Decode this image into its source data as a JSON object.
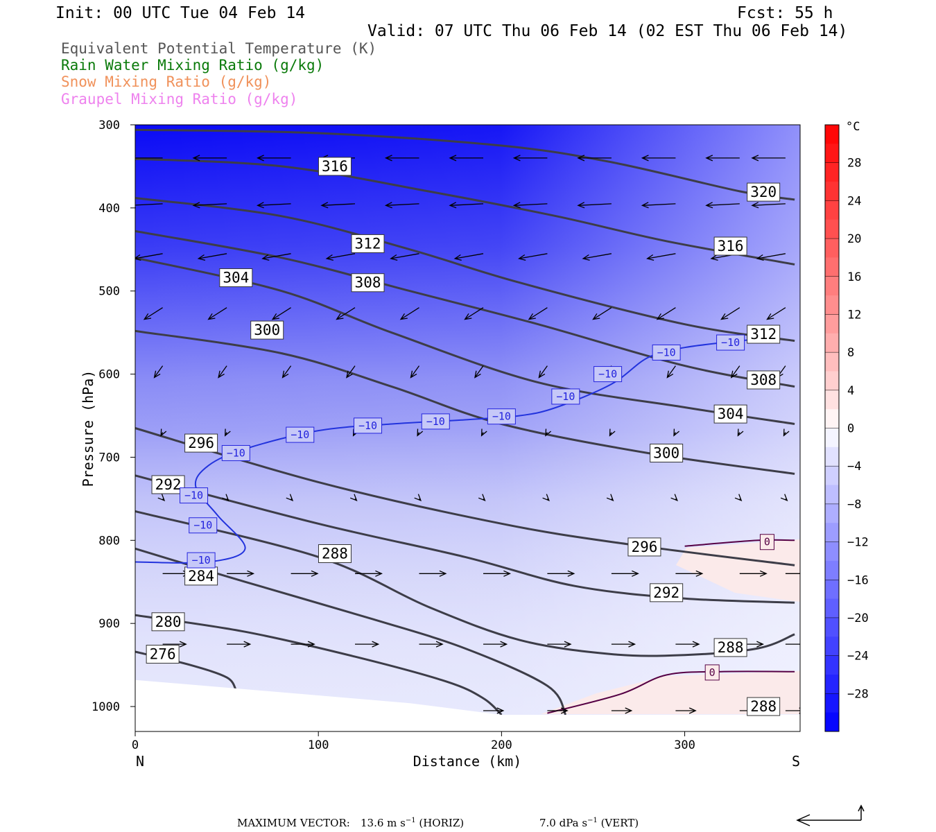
{
  "header": {
    "init": "Init: 00 UTC Tue 04 Feb 14",
    "fcst": "Fcst:   55 h",
    "valid": "Valid: 07 UTC Thu 06 Feb 14 (02 EST Thu 06 Feb 14)"
  },
  "legend": [
    {
      "label": "Equivalent Potential Temperature (K)",
      "color": "#555555"
    },
    {
      "label": "Rain Water Mixing Ratio (g/kg)",
      "color": "#0a7a0a"
    },
    {
      "label": "Snow Mixing Ratio (g/kg)",
      "color": "#f0915a"
    },
    {
      "label": "Graupel Mixing Ratio (g/kg)",
      "color": "#ee82ee"
    }
  ],
  "chart_data": {
    "type": "cross-section",
    "x_axis": {
      "label": "Distance (km)",
      "range": [
        0,
        363
      ],
      "ticks": [
        0,
        100,
        200,
        300
      ],
      "left_end": "N",
      "right_end": "S"
    },
    "y_axis": {
      "label": "Pressure (hPa)",
      "range": [
        1030,
        300
      ],
      "ticks": [
        300,
        400,
        500,
        600,
        700,
        800,
        900,
        1000
      ]
    },
    "colorbar": {
      "unit": "°C",
      "tick_labels": [
        "28",
        "24",
        "20",
        "16",
        "12",
        "8",
        "4",
        "0",
        "−4",
        "−8",
        "−12",
        "−16",
        "−20",
        "−24",
        "−28"
      ],
      "tick_values": [
        28,
        24,
        20,
        16,
        12,
        8,
        4,
        0,
        -4,
        -8,
        -12,
        -16,
        -20,
        -24,
        -28
      ],
      "range": [
        -32,
        32
      ],
      "cold_color": "#0000ff",
      "warm_color": "#ff0000",
      "neutral_color": "#ffffff"
    },
    "theta_e_contours": [
      {
        "value": 276,
        "label": "276",
        "points": [
          [
            0,
            934
          ],
          [
            30,
            950
          ],
          [
            50,
            965
          ],
          [
            55,
            980
          ]
        ]
      },
      {
        "value": 280,
        "label": "280",
        "points": [
          [
            0,
            890
          ],
          [
            60,
            910
          ],
          [
            120,
            940
          ],
          [
            170,
            970
          ],
          [
            190,
            990
          ],
          [
            200,
            1010
          ]
        ]
      },
      {
        "value": 284,
        "label": "284",
        "points": [
          [
            0,
            810
          ],
          [
            60,
            850
          ],
          [
            130,
            895
          ],
          [
            180,
            930
          ],
          [
            225,
            975
          ],
          [
            235,
            1010
          ]
        ]
      },
      {
        "value": 288,
        "label": "288",
        "points": [
          [
            0,
            765
          ],
          [
            100,
            820
          ],
          [
            160,
            880
          ],
          [
            210,
            920
          ],
          [
            260,
            937
          ],
          [
            300,
            938
          ],
          [
            340,
            930
          ],
          [
            360,
            913
          ]
        ]
      },
      {
        "value": 292,
        "label": "292",
        "points": [
          [
            0,
            722
          ],
          [
            100,
            780
          ],
          [
            180,
            820
          ],
          [
            240,
            855
          ],
          [
            300,
            870
          ],
          [
            360,
            875
          ]
        ]
      },
      {
        "value": 296,
        "label": "296",
        "points": [
          [
            0,
            665
          ],
          [
            100,
            730
          ],
          [
            200,
            780
          ],
          [
            270,
            805
          ],
          [
            360,
            830
          ]
        ]
      },
      {
        "value": 300,
        "label": "300",
        "points": [
          [
            0,
            548
          ],
          [
            80,
            575
          ],
          [
            140,
            615
          ],
          [
            200,
            660
          ],
          [
            280,
            695
          ],
          [
            360,
            720
          ]
        ]
      },
      {
        "value": 304,
        "label": "304",
        "points": [
          [
            0,
            460
          ],
          [
            80,
            500
          ],
          [
            140,
            550
          ],
          [
            220,
            610
          ],
          [
            300,
            640
          ],
          [
            360,
            660
          ]
        ]
      },
      {
        "value": 308,
        "label": "308",
        "points": [
          [
            0,
            428
          ],
          [
            80,
            460
          ],
          [
            150,
            500
          ],
          [
            220,
            540
          ],
          [
            300,
            590
          ],
          [
            360,
            615
          ]
        ]
      },
      {
        "value": 312,
        "label": "312",
        "points": [
          [
            0,
            388
          ],
          [
            80,
            410
          ],
          [
            150,
            450
          ],
          [
            210,
            490
          ],
          [
            300,
            540
          ],
          [
            360,
            560
          ]
        ]
      },
      {
        "value": 316,
        "label": "316",
        "points": [
          [
            0,
            341
          ],
          [
            80,
            350
          ],
          [
            160,
            380
          ],
          [
            230,
            410
          ],
          [
            290,
            440
          ],
          [
            360,
            468
          ]
        ]
      },
      {
        "value": 320,
        "label": "320",
        "points": [
          [
            0,
            306
          ],
          [
            100,
            310
          ],
          [
            200,
            325
          ],
          [
            260,
            345
          ],
          [
            330,
            380
          ],
          [
            360,
            390
          ]
        ]
      }
    ],
    "temperature_contours": [
      {
        "value": -10,
        "label": "−10",
        "points": [
          [
            0,
            826
          ],
          [
            40,
            826
          ],
          [
            60,
            810
          ],
          [
            45,
            770
          ],
          [
            33,
            735
          ],
          [
            40,
            710
          ],
          [
            60,
            690
          ],
          [
            100,
            668
          ],
          [
            140,
            660
          ],
          [
            180,
            655
          ],
          [
            210,
            650
          ],
          [
            230,
            640
          ],
          [
            260,
            612
          ],
          [
            280,
            580
          ],
          [
            300,
            568
          ],
          [
            330,
            560
          ],
          [
            340,
            558
          ]
        ]
      },
      {
        "value": 0,
        "label": "0",
        "points": [
          [
            300,
            807
          ],
          [
            340,
            800
          ],
          [
            360,
            800
          ]
        ]
      },
      {
        "value": 0,
        "label": "0",
        "points": [
          [
            225,
            1008
          ],
          [
            265,
            985
          ],
          [
            290,
            962
          ],
          [
            320,
            958
          ],
          [
            360,
            958
          ]
        ]
      }
    ],
    "contour_labels": [
      {
        "text": "316",
        "x": 109,
        "y": 350
      },
      {
        "text": "320",
        "x": 343,
        "y": 381
      },
      {
        "text": "312",
        "x": 127,
        "y": 443
      },
      {
        "text": "316",
        "x": 325,
        "y": 446
      },
      {
        "text": "304",
        "x": 55,
        "y": 484
      },
      {
        "text": "308",
        "x": 127,
        "y": 490
      },
      {
        "text": "300",
        "x": 72,
        "y": 547
      },
      {
        "text": "312",
        "x": 343,
        "y": 552
      },
      {
        "text": "308",
        "x": 343,
        "y": 607
      },
      {
        "text": "304",
        "x": 325,
        "y": 648
      },
      {
        "text": "296",
        "x": 36,
        "y": 683
      },
      {
        "text": "300",
        "x": 290,
        "y": 695
      },
      {
        "text": "292",
        "x": 18,
        "y": 733
      },
      {
        "text": "296",
        "x": 278,
        "y": 808
      },
      {
        "text": "288",
        "x": 109,
        "y": 816
      },
      {
        "text": "284",
        "x": 36,
        "y": 843
      },
      {
        "text": "292",
        "x": 290,
        "y": 863
      },
      {
        "text": "280",
        "x": 18,
        "y": 898
      },
      {
        "text": "288",
        "x": 325,
        "y": 929
      },
      {
        "text": "276",
        "x": 15,
        "y": 937
      },
      {
        "text": "288",
        "x": 343,
        "y": 1000
      }
    ],
    "temp_labels": [
      {
        "text": "−10",
        "x": 325,
        "y": 562
      },
      {
        "text": "−10",
        "x": 290,
        "y": 574
      },
      {
        "text": "−10",
        "x": 258,
        "y": 600
      },
      {
        "text": "−10",
        "x": 235,
        "y": 627
      },
      {
        "text": "−10",
        "x": 200,
        "y": 651
      },
      {
        "text": "−10",
        "x": 164,
        "y": 657
      },
      {
        "text": "−10",
        "x": 127,
        "y": 662
      },
      {
        "text": "−10",
        "x": 90,
        "y": 673
      },
      {
        "text": "−10",
        "x": 55,
        "y": 695
      },
      {
        "text": "−10",
        "x": 32,
        "y": 746
      },
      {
        "text": "−10",
        "x": 37,
        "y": 782
      },
      {
        "text": "−10",
        "x": 36,
        "y": 824
      },
      {
        "text": "0",
        "x": 345,
        "y": 802
      },
      {
        "text": "0",
        "x": 315,
        "y": 959
      }
    ],
    "wind_rows": [
      {
        "p": 340,
        "u": -1,
        "v": 0
      },
      {
        "p": 395,
        "u": -1,
        "v": 0.05
      },
      {
        "p": 455,
        "u": -0.85,
        "v": 0.15
      },
      {
        "p": 520,
        "u": -0.55,
        "v": 0.35
      },
      {
        "p": 590,
        "u": -0.25,
        "v": 0.35
      },
      {
        "p": 670,
        "u": -0.05,
        "v": 0.1
      },
      {
        "p": 750,
        "u": 0.05,
        "v": 0.05
      },
      {
        "p": 840,
        "u": 0.8,
        "v": 0
      },
      {
        "p": 925,
        "u": 0.7,
        "v": 0
      },
      {
        "p": 1005,
        "u": 0.6,
        "v": 0
      }
    ],
    "terrain": [
      [
        0,
        968
      ],
      [
        150,
        996
      ],
      [
        200,
        1010
      ],
      [
        363,
        1010
      ]
    ]
  },
  "footer": {
    "max_vector_label": "MAXIMUM VECTOR:",
    "horiz": "13.6 m s",
    "horiz_unit": " (HORIZ)",
    "vert": "7.0 dPa s",
    "vert_unit": " (VERT)",
    "exponent": "−1"
  }
}
